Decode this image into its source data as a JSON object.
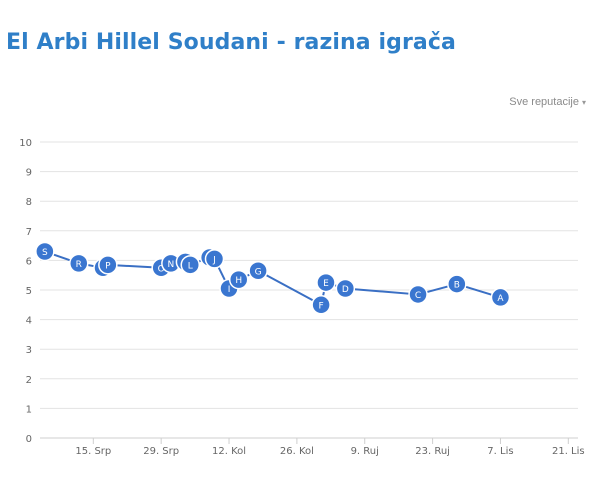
{
  "header": {
    "title": "El Arbi Hillel Soudani - razina igrača"
  },
  "filter": {
    "label": "Sve reputacije",
    "caret": "▾"
  },
  "colors": {
    "title": "#2f7fc8",
    "point_fill": "#3a76d0",
    "point_stroke": "#ffffff",
    "line": "#3a6fc4",
    "grid": "#e3e3e3"
  },
  "chart_data": {
    "type": "line",
    "title": "",
    "xlabel": "",
    "ylabel": "",
    "ylim": [
      0,
      10
    ],
    "y_ticks": [
      "0",
      "1",
      "2",
      "3",
      "4",
      "5",
      "6",
      "7",
      "8",
      "9",
      "10"
    ],
    "x_ticks": [
      "15. Srp",
      "29. Srp",
      "12. Kol",
      "26. Kol",
      "9. Ruj",
      "23. Ruj",
      "7. Lis",
      "21. Lis"
    ],
    "x_tick_days": [
      14,
      28,
      42,
      56,
      70,
      84,
      98,
      112
    ],
    "xlim_days": [
      3,
      114
    ],
    "x": [
      4,
      11,
      16,
      17,
      28,
      30,
      33,
      34,
      38,
      39,
      42,
      44,
      48,
      61,
      62,
      66,
      81,
      89,
      98
    ],
    "letters": [
      "S",
      "R",
      "Q",
      "P",
      "O",
      "N",
      "M",
      "L",
      "K",
      "J",
      "I",
      "H",
      "G",
      "F",
      "E",
      "D",
      "C",
      "B",
      "A"
    ],
    "series": [
      {
        "values": [
          6.3,
          5.9,
          5.75,
          5.85,
          5.75,
          5.9,
          5.95,
          5.85,
          6.1,
          6.05,
          5.05,
          5.35,
          5.65,
          4.5,
          5.25,
          5.05,
          4.85,
          5.2,
          4.75
        ]
      }
    ],
    "grid": true,
    "legend": "none"
  }
}
